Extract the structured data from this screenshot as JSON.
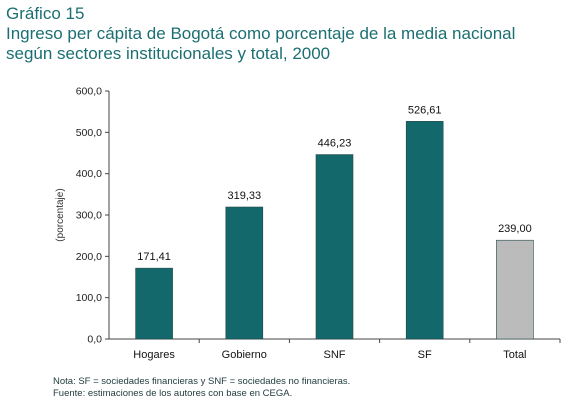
{
  "figure": {
    "label": "Gráfico 15",
    "title": "Ingreso per cápita de Bogotá como porcentaje de la media nacional según sectores institucionales y total, 2000"
  },
  "chart_data": {
    "type": "bar",
    "categories": [
      "Hogares",
      "Gobierno",
      "SNF",
      "SF",
      "Total"
    ],
    "values": [
      171.41,
      319.33,
      446.23,
      526.61,
      239.0
    ],
    "value_labels": [
      "171,41",
      "319,33",
      "446,23",
      "526,61",
      "239,00"
    ],
    "bar_colors": [
      "#12686a",
      "#12686a",
      "#12686a",
      "#12686a",
      "#bbbbbb"
    ],
    "ylabel": "(porcentaje)",
    "xlabel": "",
    "ylim": [
      0,
      600
    ],
    "y_ticks": [
      0,
      100,
      200,
      300,
      400,
      500,
      600
    ],
    "y_tick_labels": [
      "0,0",
      "100,0",
      "200,0",
      "300,0",
      "400,0",
      "500,0",
      "600,0"
    ],
    "grid": false,
    "legend": "none"
  },
  "notes": {
    "nota": "Nota: SF = sociedades financieras y SNF = sociedades no financieras.",
    "fuente": "Fuente: estimaciones de los autores con base en CEGA."
  },
  "colors": {
    "title": "#1b6f72",
    "bar_main": "#12686a",
    "bar_total": "#bbbbbb",
    "axis": "#444444"
  }
}
